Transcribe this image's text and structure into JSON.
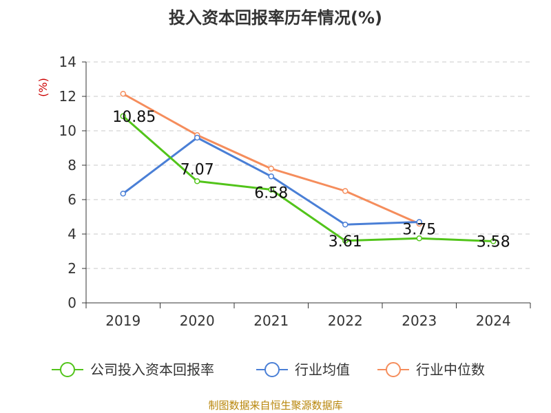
{
  "chart_data": {
    "type": "line",
    "title": "投入资本回报率历年情况(%)",
    "ylabel": "(%)",
    "xlabel": "",
    "categories": [
      "2019",
      "2020",
      "2021",
      "2022",
      "2023",
      "2024"
    ],
    "ylim": [
      0,
      14
    ],
    "yticks": [
      0,
      2,
      4,
      6,
      8,
      10,
      12,
      14
    ],
    "grid": true,
    "legend_position": "bottom",
    "series": [
      {
        "name": "公司投入资本回报率",
        "color": "#52c41a",
        "values": [
          10.85,
          7.07,
          6.58,
          3.61,
          3.75,
          3.58
        ],
        "labels": [
          "10.85",
          "7.07",
          "6.58",
          "3.61",
          "3.75",
          "3.58"
        ]
      },
      {
        "name": "行业均值",
        "color": "#4a7fd6",
        "values": [
          6.35,
          9.6,
          7.35,
          4.55,
          4.7,
          null
        ]
      },
      {
        "name": "行业中位数",
        "color": "#f58d5c",
        "values": [
          12.15,
          9.75,
          7.8,
          6.5,
          4.6,
          null
        ]
      }
    ]
  },
  "source_text": "制图数据来自恒生聚源数据库"
}
